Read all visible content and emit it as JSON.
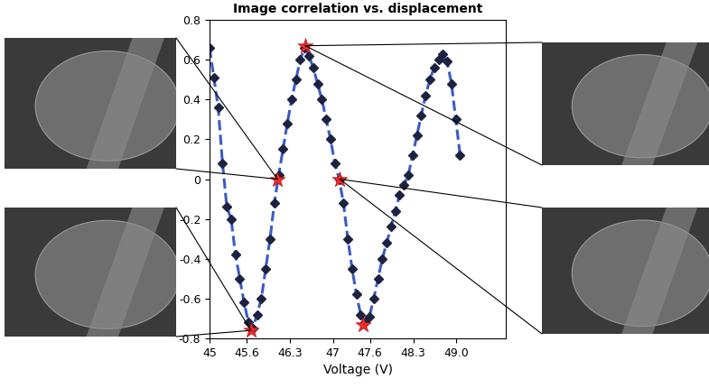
{
  "chart_data": {
    "type": "line",
    "title": "Image correlation vs. displacement",
    "x_label": "Voltage (V)",
    "xlim": [
      45,
      49.8
    ],
    "xticks": [
      45,
      45.6,
      46.3,
      47,
      47.6,
      48.3,
      {
        "value": 49,
        "label": "49.0"
      }
    ],
    "ylim": [
      -0.8,
      0.8
    ],
    "yticks": [
      -0.8,
      -0.6,
      -0.4,
      -0.2,
      0,
      0.2,
      0.4,
      0.6,
      0.8
    ],
    "grid": false,
    "series": [
      {
        "type": "line",
        "marker": "diamond",
        "line_style": "dashed",
        "color": "#3a5bc7",
        "x": [
          45.0,
          45.07,
          45.14,
          45.21,
          45.28,
          45.35,
          45.42,
          45.49,
          45.56,
          45.63,
          45.7,
          45.77,
          45.84,
          45.91,
          45.98,
          46.05,
          46.12,
          46.19,
          46.26,
          46.33,
          46.4,
          46.47,
          46.54,
          46.61,
          46.68,
          46.75,
          46.82,
          46.89,
          46.96,
          47.03,
          47.1,
          47.17,
          47.24,
          47.31,
          47.38,
          47.45,
          47.52,
          47.59,
          47.66,
          47.73,
          47.8,
          47.87,
          47.94,
          48.01,
          48.08,
          48.15,
          48.22,
          48.29,
          48.36,
          48.43,
          48.5,
          48.57,
          48.64,
          48.71,
          48.78,
          48.85,
          48.92,
          48.99,
          49.06
        ],
        "values": [
          0.66,
          0.51,
          0.36,
          0.08,
          -0.14,
          -0.2,
          -0.38,
          -0.5,
          -0.62,
          -0.72,
          -0.75,
          -0.68,
          -0.6,
          -0.45,
          -0.3,
          -0.12,
          0.02,
          0.15,
          0.28,
          0.4,
          0.5,
          0.6,
          0.66,
          0.62,
          0.56,
          0.48,
          0.4,
          0.3,
          0.2,
          0.08,
          0.0,
          -0.12,
          -0.3,
          -0.45,
          -0.58,
          -0.68,
          -0.72,
          -0.69,
          -0.6,
          -0.5,
          -0.4,
          -0.32,
          -0.24,
          -0.16,
          -0.08,
          -0.03,
          0.02,
          0.12,
          0.22,
          0.32,
          0.42,
          0.5,
          0.56,
          0.6,
          0.63,
          0.59,
          0.48,
          0.3,
          0.12
        ]
      },
      {
        "type": "scatter",
        "marker": "star",
        "color": "#ee2a2a",
        "x": [
          45.67,
          46.1,
          46.55,
          47.11,
          47.49
        ],
        "values": [
          -0.76,
          0.0,
          0.67,
          0.0,
          -0.73
        ]
      }
    ]
  }
}
